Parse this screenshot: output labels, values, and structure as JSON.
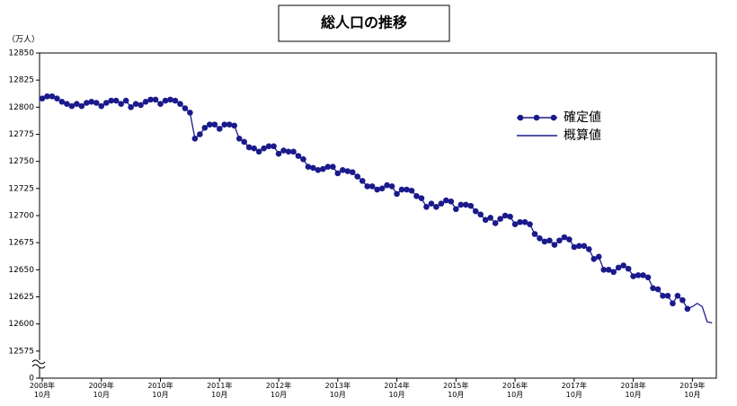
{
  "chart_data": {
    "type": "line",
    "title": "総人口の推移",
    "y_unit_label": "（万人）",
    "y_origin_label": "0",
    "categories": [
      "2008年10月",
      null,
      null,
      null,
      null,
      null,
      null,
      null,
      null,
      null,
      null,
      null,
      "2009年10月",
      null,
      null,
      null,
      null,
      null,
      null,
      null,
      null,
      null,
      null,
      null,
      "2010年10月",
      null,
      null,
      null,
      null,
      null,
      null,
      null,
      null,
      null,
      null,
      null,
      "2011年10月",
      null,
      null,
      null,
      null,
      null,
      null,
      null,
      null,
      null,
      null,
      null,
      "2012年10月",
      null,
      null,
      null,
      null,
      null,
      null,
      null,
      null,
      null,
      null,
      null,
      "2013年10月",
      null,
      null,
      null,
      null,
      null,
      null,
      null,
      null,
      null,
      null,
      null,
      "2014年10月",
      null,
      null,
      null,
      null,
      null,
      null,
      null,
      null,
      null,
      null,
      null,
      "2015年10月",
      null,
      null,
      null,
      null,
      null,
      null,
      null,
      null,
      null,
      null,
      null,
      "2016年10月",
      null,
      null,
      null,
      null,
      null,
      null,
      null,
      null,
      null,
      null,
      null,
      "2017年10月",
      null,
      null,
      null,
      null,
      null,
      null,
      null,
      null,
      null,
      null,
      null,
      "2018年10月",
      null,
      null,
      null,
      null,
      null,
      null,
      null,
      null,
      null,
      null,
      null,
      "2019年10月",
      null,
      null,
      null,
      null
    ],
    "series": [
      {
        "name": "確定値",
        "color": "#1a1a8c",
        "markers": true,
        "values": [
          12808,
          12810,
          12810,
          12808,
          12805,
          12803,
          12801,
          12803,
          12801,
          12804,
          12805,
          12804,
          12801,
          12804,
          12806,
          12806,
          12803,
          12806,
          12800,
          12803,
          12802,
          12805,
          12807,
          12807,
          12803,
          12806,
          12807,
          12806,
          12803,
          12799,
          12795,
          12771,
          12775,
          12781,
          12784,
          12784,
          12780,
          12784,
          12784,
          12783,
          12771,
          12768,
          12763,
          12762,
          12759,
          12762,
          12764,
          12764,
          12757,
          12760,
          12759,
          12759,
          12755,
          12752,
          12745,
          12744,
          12742,
          12743,
          12745,
          12745,
          12739,
          12742,
          12741,
          12740,
          12736,
          12732,
          12727,
          12727,
          12724,
          12725,
          12728,
          12727,
          12720,
          12724,
          12724,
          12723,
          12718,
          12716,
          12708,
          12711,
          12708,
          12711,
          12714,
          12713,
          12706,
          12710,
          12710,
          12709,
          12704,
          12701,
          12696,
          12698,
          12693,
          12697,
          12700,
          12699,
          12692,
          12694,
          12694,
          12692,
          12683,
          12679,
          12676,
          12677,
          12673,
          12677,
          12680,
          12678,
          12671,
          12672,
          12672,
          12669,
          12660,
          12662,
          12650,
          12650,
          12648,
          12652,
          12654,
          12651,
          12644,
          12645,
          12645,
          12643,
          12633,
          12632,
          12626,
          12626,
          12619,
          12626,
          12622,
          12614,
          null,
          null,
          null,
          null,
          null
        ]
      },
      {
        "name": "概算値",
        "color": "#1a1a8c",
        "markers": false,
        "values": [
          null,
          null,
          null,
          null,
          null,
          null,
          null,
          null,
          null,
          null,
          null,
          null,
          null,
          null,
          null,
          null,
          null,
          null,
          null,
          null,
          null,
          null,
          null,
          null,
          null,
          null,
          null,
          null,
          null,
          null,
          null,
          null,
          null,
          null,
          null,
          null,
          null,
          null,
          null,
          null,
          null,
          null,
          null,
          null,
          null,
          null,
          null,
          null,
          null,
          null,
          null,
          null,
          null,
          null,
          null,
          null,
          null,
          null,
          null,
          null,
          null,
          null,
          null,
          null,
          null,
          null,
          null,
          null,
          null,
          null,
          null,
          null,
          null,
          null,
          null,
          null,
          null,
          null,
          null,
          null,
          null,
          null,
          null,
          null,
          null,
          null,
          null,
          null,
          null,
          null,
          null,
          null,
          null,
          null,
          null,
          null,
          null,
          null,
          null,
          null,
          null,
          null,
          null,
          null,
          null,
          null,
          null,
          null,
          null,
          null,
          null,
          null,
          null,
          null,
          null,
          null,
          null,
          null,
          null,
          null,
          null,
          null,
          null,
          null,
          null,
          null,
          null,
          null,
          null,
          null,
          null,
          12614,
          12616,
          12619,
          12616,
          12602,
          12601
        ]
      }
    ],
    "ylim": [
      12550,
      12850
    ],
    "yticks": [
      12575,
      12600,
      12625,
      12650,
      12675,
      12700,
      12725,
      12750,
      12775,
      12800,
      12825,
      12850
    ],
    "axis_break": true,
    "grid": false,
    "legend": "upper-right"
  }
}
